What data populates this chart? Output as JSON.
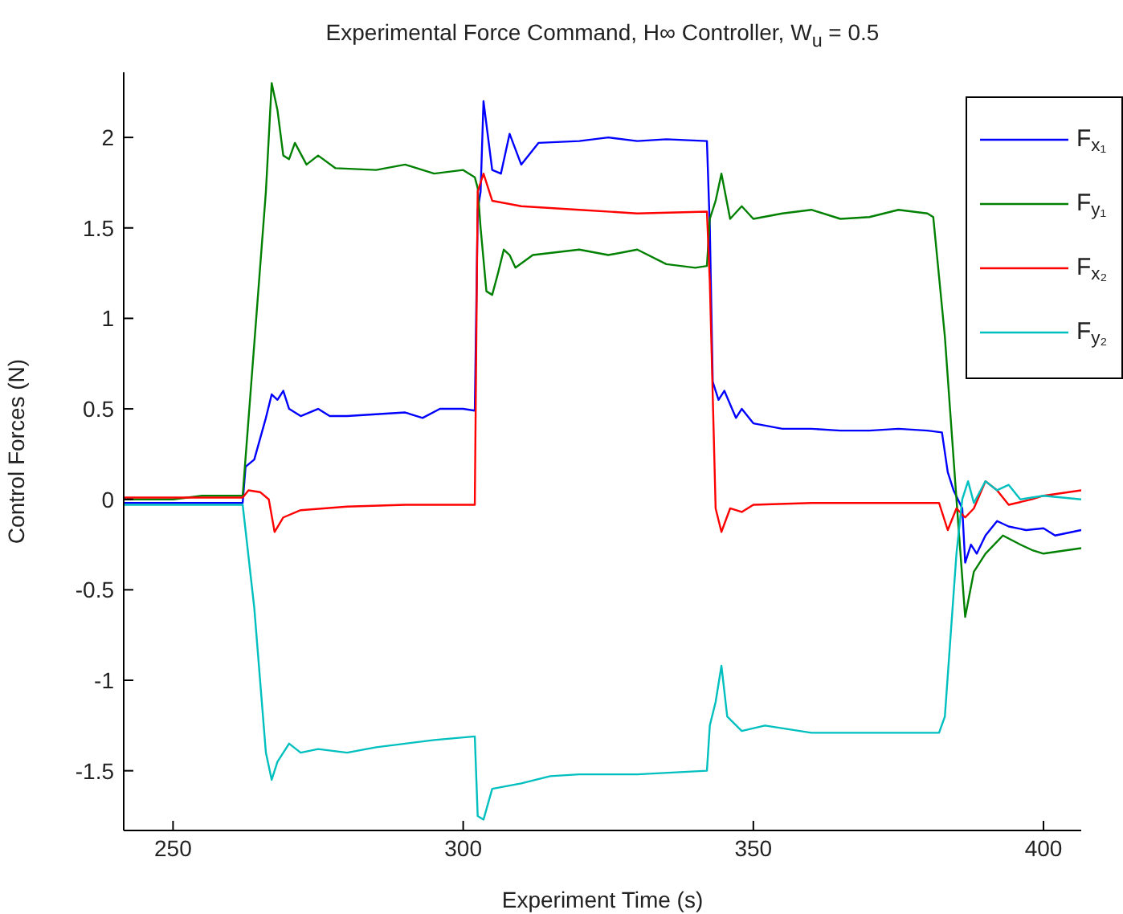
{
  "chart_data": {
    "type": "line",
    "title": "Experimental Force Command, H∞ Controller, W$_{u}$ = 0.5",
    "xlabel": "Experiment Time (s)",
    "ylabel": "Control Forces (N)",
    "xlim": [
      241.5,
      406.5
    ],
    "xticks": [
      250,
      300,
      350,
      400
    ],
    "ylim": [
      -1.83,
      2.36
    ],
    "yticks": [
      -1.5,
      -1,
      -0.5,
      0,
      0.5,
      1,
      1.5,
      2
    ],
    "grid": false,
    "legend": "top right",
    "marker": "none",
    "line_style": "solid",
    "series": [
      {
        "name": "F$_{x₁}$",
        "color": "#0000ff",
        "x": [
          241.5,
          262,
          262.5,
          264,
          266,
          267,
          268,
          269,
          270,
          272,
          275,
          277,
          280,
          285,
          290,
          293,
          296,
          300,
          302,
          302.5,
          303,
          303.5,
          305,
          306.5,
          308,
          310,
          313,
          320,
          325,
          330,
          335,
          342,
          342.5,
          343,
          344,
          345,
          347,
          348,
          350,
          355,
          360,
          365,
          370,
          375,
          380,
          382.5,
          383.5,
          384.5,
          386,
          386.5,
          387.5,
          388.5,
          390,
          392,
          394,
          397,
          400,
          402,
          406.5
        ],
        "values": [
          -0.02,
          -0.02,
          0.18,
          0.22,
          0.45,
          0.58,
          0.55,
          0.6,
          0.5,
          0.46,
          0.5,
          0.46,
          0.46,
          0.47,
          0.48,
          0.45,
          0.5,
          0.5,
          0.49,
          1.6,
          1.7,
          2.2,
          1.82,
          1.8,
          2.02,
          1.85,
          1.97,
          1.98,
          2.0,
          1.98,
          1.99,
          1.98,
          1.5,
          0.65,
          0.55,
          0.6,
          0.45,
          0.5,
          0.42,
          0.39,
          0.39,
          0.38,
          0.38,
          0.39,
          0.38,
          0.37,
          0.15,
          0.05,
          -0.05,
          -0.35,
          -0.25,
          -0.3,
          -0.2,
          -0.12,
          -0.15,
          -0.17,
          -0.16,
          -0.2,
          -0.17
        ]
      },
      {
        "name": "F$_{y₁}$",
        "color": "#008000",
        "x": [
          241.5,
          250,
          255,
          262,
          266,
          267,
          268,
          269,
          270,
          271,
          273,
          275,
          278,
          285,
          290,
          295,
          300,
          302,
          302.5,
          303,
          304,
          305,
          306,
          307,
          308,
          309,
          312,
          320,
          325,
          330,
          335,
          340,
          342,
          342.5,
          343.5,
          344.5,
          346,
          348,
          350,
          355,
          360,
          365,
          370,
          375,
          380,
          381,
          383,
          385,
          386.5,
          388,
          390,
          393,
          396,
          398,
          400,
          406.5
        ],
        "values": [
          0,
          0,
          0.02,
          0.02,
          1.7,
          2.3,
          2.15,
          1.9,
          1.88,
          1.97,
          1.85,
          1.9,
          1.83,
          1.82,
          1.85,
          1.8,
          1.82,
          1.78,
          1.72,
          1.5,
          1.15,
          1.13,
          1.25,
          1.38,
          1.35,
          1.28,
          1.35,
          1.38,
          1.35,
          1.38,
          1.3,
          1.28,
          1.29,
          1.55,
          1.65,
          1.8,
          1.55,
          1.62,
          1.55,
          1.58,
          1.6,
          1.55,
          1.56,
          1.6,
          1.58,
          1.56,
          0.9,
          0,
          -0.65,
          -0.4,
          -0.3,
          -0.2,
          -0.25,
          -0.28,
          -0.3,
          -0.27
        ]
      },
      {
        "name": "F$_{x₂}$",
        "color": "#ff0000",
        "x": [
          241.5,
          262,
          263,
          265,
          266.5,
          267.5,
          269,
          272,
          280,
          290,
          302,
          302.5,
          303.5,
          305,
          310,
          320,
          330,
          342,
          342.5,
          343.5,
          344.5,
          346,
          348,
          350,
          360,
          370,
          382,
          383.5,
          385,
          386.5,
          388,
          390,
          392,
          394,
          398,
          400,
          406.5
        ],
        "values": [
          0.01,
          0.01,
          0.05,
          0.04,
          0.0,
          -0.18,
          -0.1,
          -0.06,
          -0.04,
          -0.03,
          -0.03,
          1.7,
          1.8,
          1.65,
          1.62,
          1.6,
          1.58,
          1.59,
          1.2,
          -0.05,
          -0.18,
          -0.05,
          -0.07,
          -0.03,
          -0.02,
          -0.02,
          -0.02,
          -0.17,
          -0.05,
          -0.1,
          -0.05,
          0.1,
          0.05,
          -0.03,
          0.0,
          0.02,
          0.05
        ]
      },
      {
        "name": "F$_{y₂}$",
        "color": "#00bfbf",
        "x": [
          241.5,
          262,
          264,
          266,
          267,
          268,
          270,
          272,
          275,
          280,
          285,
          290,
          295,
          302,
          302.5,
          303.5,
          305,
          310,
          315,
          320,
          330,
          342,
          342.5,
          343.5,
          344.5,
          345.5,
          348,
          352,
          360,
          370,
          382,
          383,
          385,
          386,
          387,
          388,
          390,
          392,
          394,
          396,
          400,
          406.5
        ],
        "values": [
          -0.03,
          -0.03,
          -0.6,
          -1.4,
          -1.55,
          -1.45,
          -1.35,
          -1.4,
          -1.38,
          -1.4,
          -1.37,
          -1.35,
          -1.33,
          -1.31,
          -1.75,
          -1.77,
          -1.6,
          -1.57,
          -1.53,
          -1.52,
          -1.52,
          -1.5,
          -1.25,
          -1.12,
          -0.92,
          -1.2,
          -1.28,
          -1.25,
          -1.29,
          -1.29,
          -1.29,
          -1.2,
          -0.3,
          0.0,
          0.1,
          -0.02,
          0.1,
          0.05,
          0.08,
          0.0,
          0.02,
          0.0
        ]
      }
    ]
  }
}
